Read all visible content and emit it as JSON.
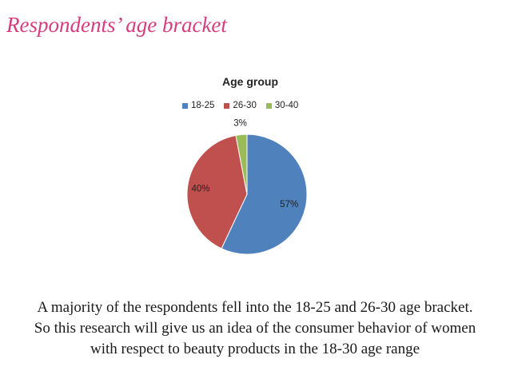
{
  "slide": {
    "title": "Respondents’ age bracket",
    "title_color": "#d63c7e"
  },
  "chart_data": {
    "type": "pie",
    "title": "Age group",
    "categories": [
      "18-25",
      "26-30",
      "30-40"
    ],
    "values": [
      57,
      40,
      3
    ],
    "labels": [
      "57%",
      "40%",
      "3%"
    ],
    "colors": [
      "#4f81bd",
      "#c0504d",
      "#9bbb59"
    ],
    "legend_position": "top"
  },
  "caption": {
    "line1": "A majority of the respondents fell into the 18-25 and 26-30 age bracket.",
    "line2": "So this research will give us an idea of the consumer behavior of women",
    "line3": "with respect to beauty products in the 18-30 age range"
  }
}
